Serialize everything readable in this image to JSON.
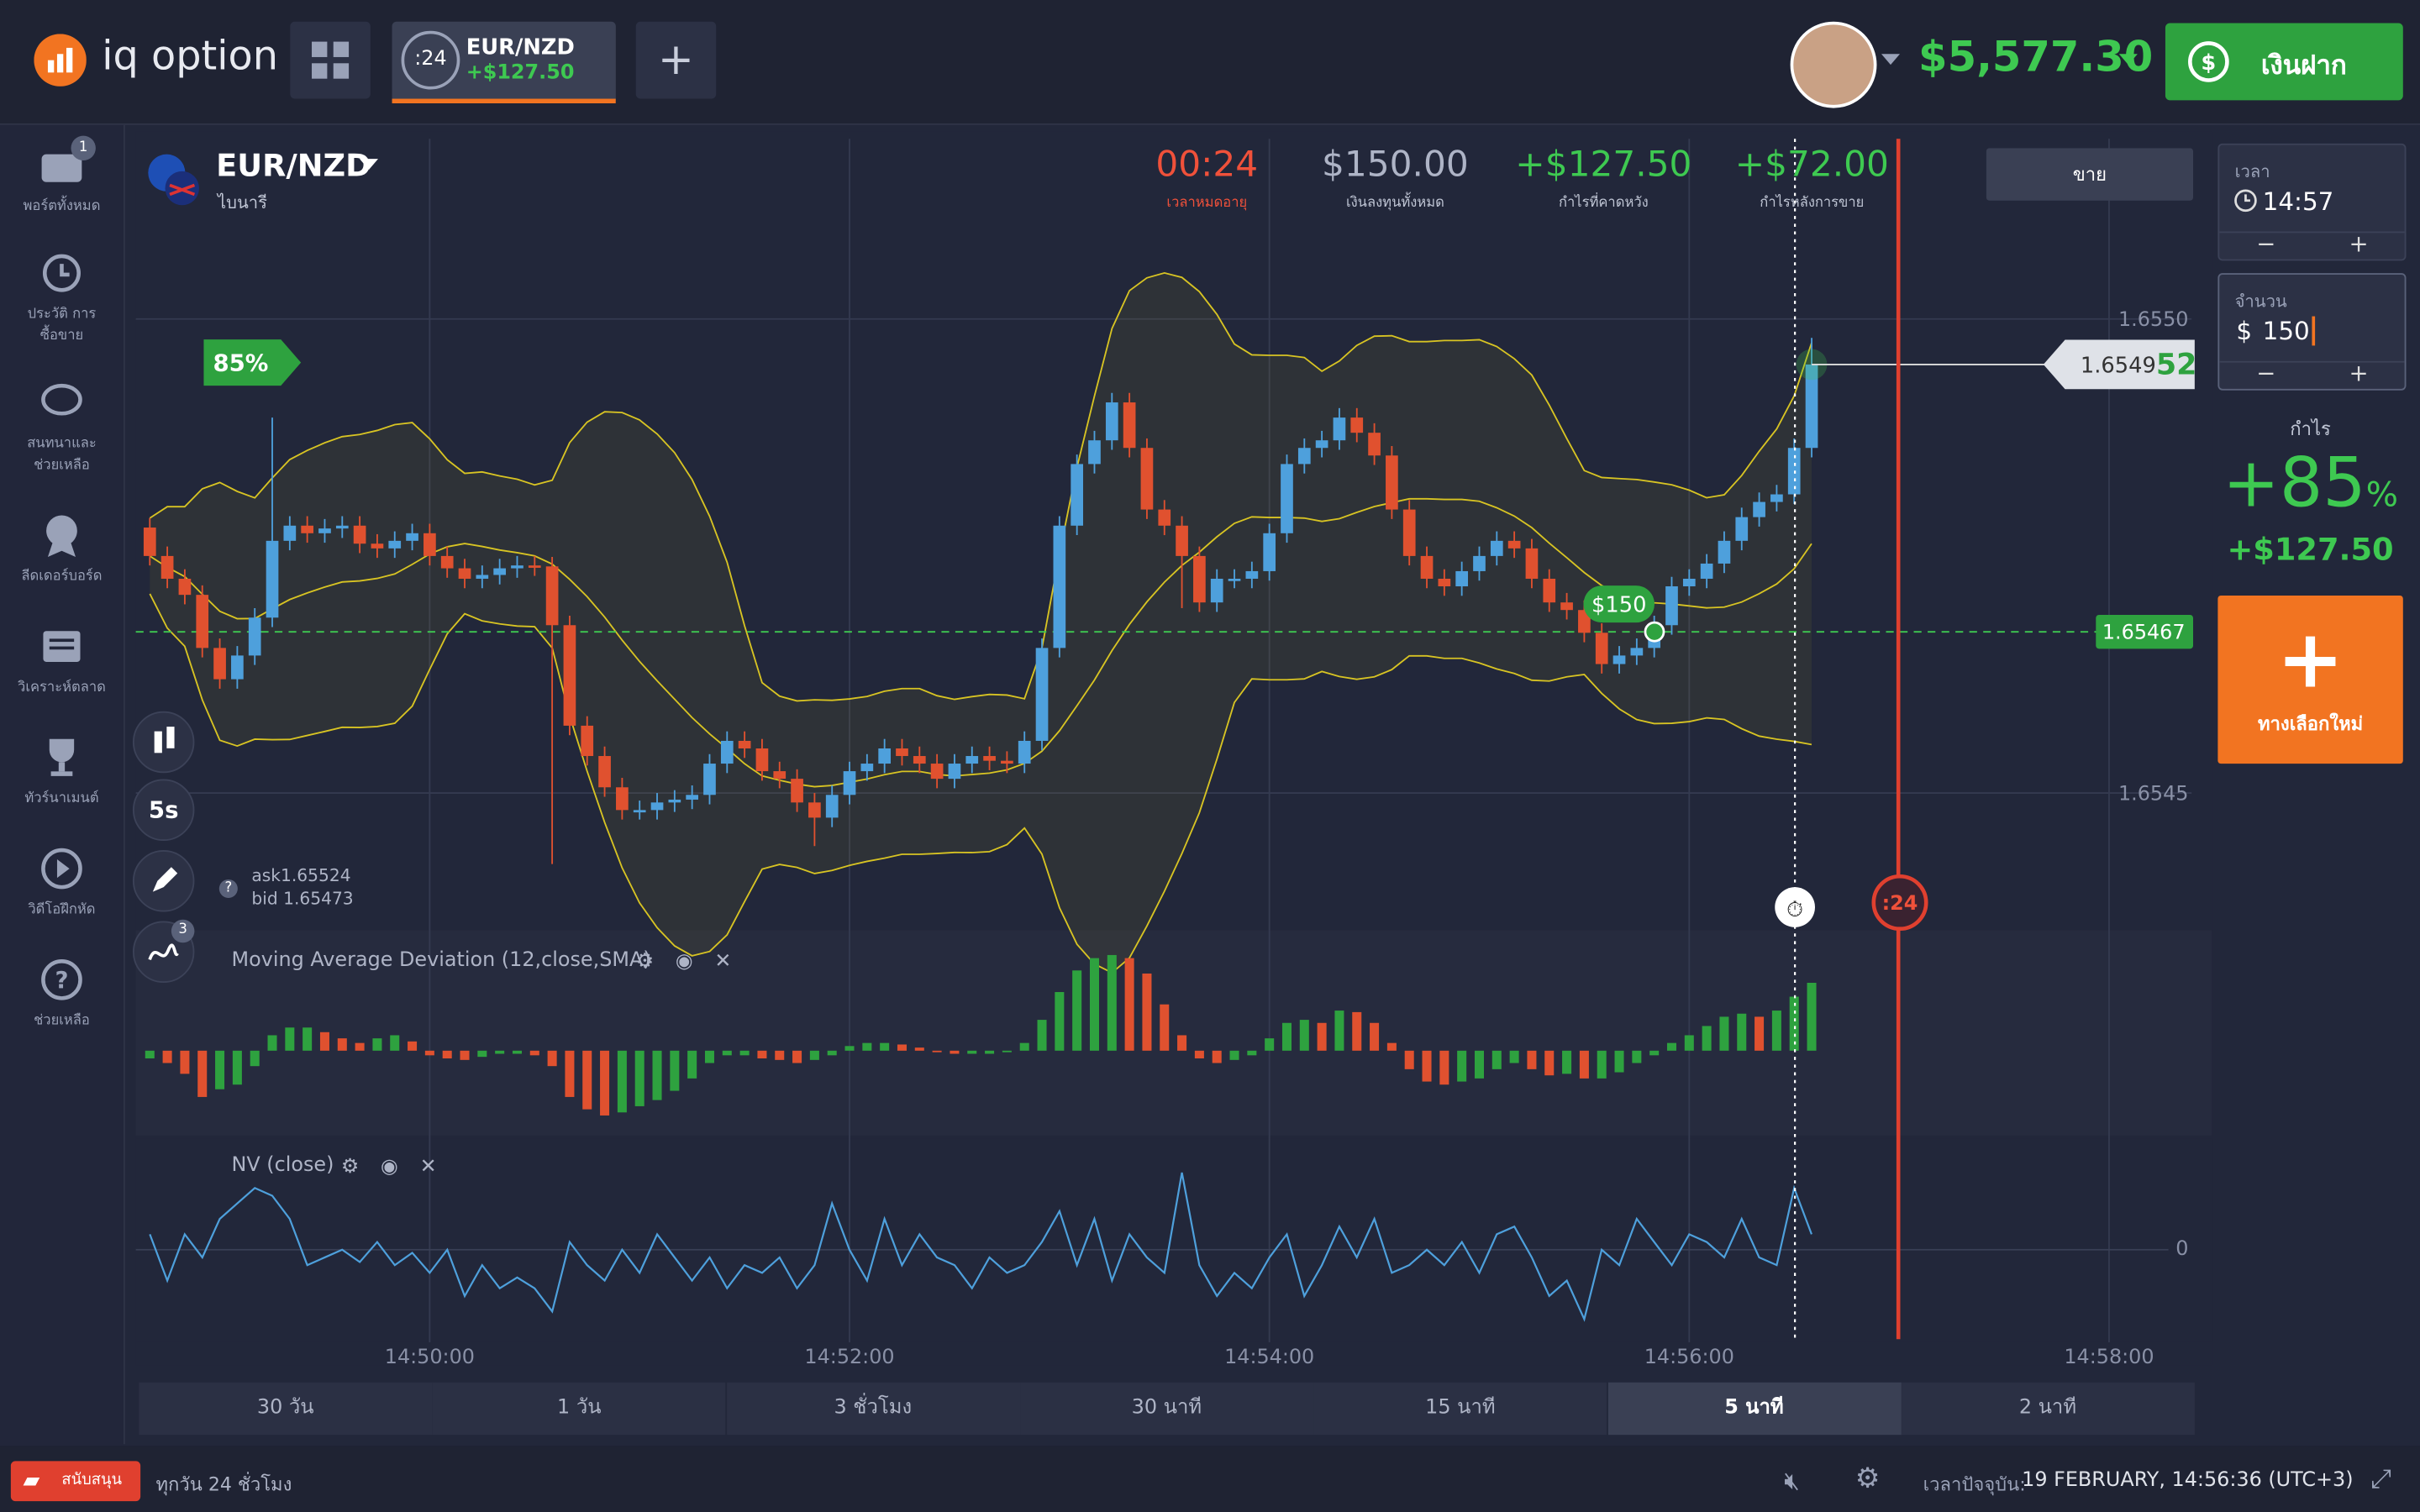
{
  "header": {
    "logo": "iq option",
    "tab": {
      "timer": ":24",
      "pair": "EUR/NZD",
      "profit": "+$127.50"
    },
    "balance": "$5,577.30",
    "deposit": "เงินฝาก"
  },
  "sidebar": {
    "items": [
      {
        "label": "พอร์ตทั้งหมด",
        "badge": "1"
      },
      {
        "label": "ประวัติ การซื้อขาย"
      },
      {
        "label": "สนทนาและ ช่วยเหลือ"
      },
      {
        "label": "ลีดเดอร์บอร์ด"
      },
      {
        "label": "วิเคราะห์ตลาด"
      },
      {
        "label": "ทัวร์นาเมนต์"
      },
      {
        "label": "วิดีโอฝึกหัด"
      },
      {
        "label": "ช่วยเหลือ"
      }
    ]
  },
  "asset": {
    "name": "EUR/NZD",
    "kind": "ไบนารี"
  },
  "stats": [
    {
      "value": "00:24",
      "label": "เวลาหมดอายุ"
    },
    {
      "value": "$150.00",
      "label": "เงินลงทุนทั้งหมด"
    },
    {
      "value": "+$127.50",
      "label": "กำไรที่คาดหวัง"
    },
    {
      "value": "+$72.00",
      "label": "กำไรหลังการขาย"
    }
  ],
  "sell": "ขาย",
  "trade_panel": {
    "time_label": "เวลา",
    "time": "14:57",
    "amount_label": "จำนวน",
    "currency": "$",
    "amount": "150",
    "profit_label": "กำไร",
    "payout_value": "+85",
    "payout_unit": "%",
    "profit": "+$127.50",
    "new_option": "ทางเลือกใหม่"
  },
  "tools": {
    "interval": "5s",
    "indicators_badge": "3",
    "ask_label": "ask",
    "ask": 1.65524,
    "bid_label": "bid",
    "bid": 1.65473
  },
  "periods": [
    "30 วัน",
    "1 วัน",
    "3 ชั่วโมง",
    "30 นาที",
    "15 นาที",
    "5 นาที",
    "2 นาที"
  ],
  "footer": {
    "support": "สนับสนุน",
    "hours": "ทุกวัน 24 ชั่วโมง",
    "now_label": "เวลาปัจจุบัน:",
    "now": "19 FEBRUARY, 14:56:36 (UTC+3)"
  },
  "chart_data": [
    {
      "type": "candlestick",
      "up_color": "#4ea0dc",
      "down_color": "#e0512f",
      "band_color": "#d8c423",
      "grid": true,
      "xlim": [
        53316,
        53908
      ],
      "xticks": [
        {
          "value": 53400,
          "label": "14:50:00"
        },
        {
          "value": 53520,
          "label": "14:52:00"
        },
        {
          "value": 53640,
          "label": "14:54:00"
        },
        {
          "value": 53760,
          "label": "14:56:00"
        },
        {
          "value": 53880,
          "label": "14:58:00"
        }
      ],
      "ylim": [
        1.65436,
        1.65519
      ],
      "yticks": [
        {
          "value": 1.655,
          "label": "1.6550"
        },
        1.6545
      ],
      "payout": "85%",
      "price_label": {
        "main": "1.6549",
        "tail": "52"
      },
      "entry": {
        "price": 1.65467,
        "amount": "$150"
      },
      "timer": ":24",
      "x": [
        53320,
        53325,
        53330,
        53335,
        53340,
        53345,
        53350,
        53355,
        53360,
        53365,
        53370,
        53375,
        53380,
        53385,
        53390,
        53395,
        53400,
        53405,
        53410,
        53415,
        53420,
        53425,
        53430,
        53435,
        53440,
        53445,
        53450,
        53455,
        53460,
        53465,
        53470,
        53475,
        53480,
        53485,
        53490,
        53495,
        53500,
        53505,
        53510,
        53515,
        53520,
        53525,
        53530,
        53535,
        53540,
        53545,
        53550,
        53555,
        53560,
        53565,
        53570,
        53575,
        53580,
        53585,
        53590,
        53595,
        53600,
        53605,
        53610,
        53615,
        53620,
        53625,
        53630,
        53635,
        53640,
        53645,
        53650,
        53655,
        53660,
        53665,
        53670,
        53675,
        53680,
        53685,
        53690,
        53695,
        53700,
        53705,
        53710,
        53715,
        53720,
        53725,
        53730,
        53735,
        53740,
        53745,
        53750,
        53755,
        53760,
        53765,
        53770,
        53775,
        53780,
        53785,
        53790,
        53795
      ],
      "candles": [
        [
          1.65478,
          1.65479,
          1.65474,
          1.65475
        ],
        [
          1.65475,
          1.65476,
          1.654716,
          1.654726
        ],
        [
          1.654726,
          1.654736,
          1.654699,
          1.654709
        ],
        [
          1.654709,
          1.654719,
          1.654643,
          1.654653
        ],
        [
          1.654653,
          1.654663,
          1.65461,
          1.65462
        ],
        [
          1.65462,
          1.654655,
          1.65461,
          1.654645
        ],
        [
          1.654645,
          1.654695,
          1.654635,
          1.654685
        ],
        [
          1.654685,
          1.654896,
          1.654675,
          1.654766
        ],
        [
          1.654766,
          1.654792,
          1.654756,
          1.654782
        ],
        [
          1.654782,
          1.654792,
          1.654764,
          1.654774
        ],
        [
          1.654774,
          1.654789,
          1.654764,
          1.654779
        ],
        [
          1.654779,
          1.654792,
          1.654769,
          1.654782
        ],
        [
          1.654782,
          1.654792,
          1.654753,
          1.654763
        ],
        [
          1.654763,
          1.654773,
          1.654748,
          1.654758
        ],
        [
          1.654758,
          1.654776,
          1.654748,
          1.654766
        ],
        [
          1.654766,
          1.654784,
          1.654756,
          1.654774
        ],
        [
          1.654774,
          1.654784,
          1.65474,
          1.65475
        ],
        [
          1.65475,
          1.65476,
          1.654727,
          1.654737
        ],
        [
          1.654737,
          1.654747,
          1.654716,
          1.654726
        ],
        [
          1.654726,
          1.65474,
          1.654716,
          1.65473
        ],
        [
          1.65473,
          1.654747,
          1.65472,
          1.654737
        ],
        [
          1.654737,
          1.65475,
          1.654727,
          1.65474
        ],
        [
          1.65474,
          1.65475,
          1.654729,
          1.654739
        ],
        [
          1.654739,
          1.654749,
          1.654425,
          1.654677
        ],
        [
          1.654677,
          1.654687,
          1.654561,
          1.654571
        ],
        [
          1.654571,
          1.654581,
          1.654529,
          1.654539
        ],
        [
          1.654539,
          1.654549,
          1.654496,
          1.654506
        ],
        [
          1.654506,
          1.654516,
          1.654472,
          1.654482
        ],
        [
          1.654482,
          1.654492,
          1.654472,
          1.654482
        ],
        [
          1.654482,
          1.6545,
          1.654472,
          1.65449
        ],
        [
          1.65449,
          1.654503,
          1.65448,
          1.654493
        ],
        [
          1.654493,
          1.654508,
          1.654483,
          1.654498
        ],
        [
          1.654498,
          1.654541,
          1.654488,
          1.654531
        ],
        [
          1.654531,
          1.654565,
          1.654521,
          1.654555
        ],
        [
          1.654555,
          1.654565,
          1.654537,
          1.654547
        ],
        [
          1.654547,
          1.654557,
          1.654513,
          1.654523
        ],
        [
          1.654523,
          1.654533,
          1.654505,
          1.654515
        ],
        [
          1.654515,
          1.654525,
          1.65448,
          1.65449
        ],
        [
          1.65449,
          1.6545,
          1.654444,
          1.654474
        ],
        [
          1.654474,
          1.654508,
          1.654464,
          1.654498
        ],
        [
          1.654498,
          1.654533,
          1.654488,
          1.654523
        ],
        [
          1.654523,
          1.654541,
          1.654513,
          1.654531
        ],
        [
          1.654531,
          1.654557,
          1.654521,
          1.654547
        ],
        [
          1.654547,
          1.654557,
          1.654529,
          1.654539
        ],
        [
          1.654539,
          1.654549,
          1.654521,
          1.654531
        ],
        [
          1.654531,
          1.654541,
          1.654505,
          1.654515
        ],
        [
          1.654515,
          1.654541,
          1.654505,
          1.654531
        ],
        [
          1.654531,
          1.654549,
          1.654521,
          1.654539
        ],
        [
          1.654539,
          1.654549,
          1.654524,
          1.654534
        ],
        [
          1.654534,
          1.654544,
          1.654521,
          1.654531
        ],
        [
          1.654531,
          1.654565,
          1.654521,
          1.654555
        ],
        [
          1.654555,
          1.654663,
          1.654545,
          1.654653
        ],
        [
          1.654653,
          1.654792,
          1.654643,
          1.654782
        ],
        [
          1.654782,
          1.654857,
          1.654772,
          1.654847
        ],
        [
          1.654847,
          1.654882,
          1.654837,
          1.654872
        ],
        [
          1.654872,
          1.654922,
          1.654862,
          1.654912
        ],
        [
          1.654912,
          1.654922,
          1.654854,
          1.654864
        ],
        [
          1.654864,
          1.654874,
          1.654789,
          1.654799
        ],
        [
          1.654799,
          1.654809,
          1.654772,
          1.654782
        ],
        [
          1.654782,
          1.654792,
          1.654695,
          1.65475
        ],
        [
          1.65475,
          1.65476,
          1.654691,
          1.654701
        ],
        [
          1.654701,
          1.654736,
          1.654691,
          1.654726
        ],
        [
          1.654726,
          1.654736,
          1.654716,
          1.654726
        ],
        [
          1.654726,
          1.654744,
          1.654716,
          1.654734
        ],
        [
          1.654734,
          1.654784,
          1.654724,
          1.654774
        ],
        [
          1.654774,
          1.654857,
          1.654764,
          1.654847
        ],
        [
          1.654847,
          1.654874,
          1.654837,
          1.654864
        ],
        [
          1.654864,
          1.654882,
          1.654854,
          1.654872
        ],
        [
          1.654872,
          1.654906,
          1.654862,
          1.654896
        ],
        [
          1.654896,
          1.654906,
          1.65487,
          1.65488
        ],
        [
          1.65488,
          1.65489,
          1.654846,
          1.654856
        ],
        [
          1.654856,
          1.654866,
          1.654789,
          1.654799
        ],
        [
          1.654799,
          1.654809,
          1.65474,
          1.65475
        ],
        [
          1.65475,
          1.65476,
          1.654716,
          1.654726
        ],
        [
          1.654726,
          1.654736,
          1.654708,
          1.654718
        ],
        [
          1.654718,
          1.654744,
          1.654708,
          1.654734
        ],
        [
          1.654734,
          1.65476,
          1.654724,
          1.65475
        ],
        [
          1.65475,
          1.654776,
          1.65474,
          1.654766
        ],
        [
          1.654766,
          1.654776,
          1.654748,
          1.654758
        ],
        [
          1.654758,
          1.654768,
          1.654716,
          1.654726
        ],
        [
          1.654726,
          1.654736,
          1.654691,
          1.654701
        ],
        [
          1.654701,
          1.654711,
          1.654683,
          1.654693
        ],
        [
          1.654693,
          1.654703,
          1.654659,
          1.654669
        ],
        [
          1.654669,
          1.654679,
          1.654626,
          1.654636
        ],
        [
          1.654636,
          1.654655,
          1.654626,
          1.654645
        ],
        [
          1.654645,
          1.654663,
          1.654635,
          1.654653
        ],
        [
          1.654653,
          1.654687,
          1.654643,
          1.654677
        ],
        [
          1.654677,
          1.654728,
          1.654667,
          1.654718
        ],
        [
          1.654718,
          1.654736,
          1.654708,
          1.654726
        ],
        [
          1.654726,
          1.654752,
          1.654716,
          1.654742
        ],
        [
          1.654742,
          1.654776,
          1.654732,
          1.654766
        ],
        [
          1.654766,
          1.654801,
          1.654756,
          1.654791
        ],
        [
          1.654791,
          1.654817,
          1.654781,
          1.654807
        ],
        [
          1.654807,
          1.654825,
          1.654797,
          1.654815
        ],
        [
          1.654815,
          1.654874,
          1.654805,
          1.654864
        ],
        [
          1.654864,
          1.65498,
          1.654854,
          1.654952
        ]
      ]
    },
    {
      "type": "histogram",
      "title": "Moving Average Deviation (12,close,SMA)",
      "up_color": "#2ea23f",
      "down_color": "#e0512f",
      "ylim": [
        -54,
        76
      ],
      "values": [
        -5,
        -8,
        -15,
        -30,
        -25,
        -22,
        -10,
        10,
        15,
        15,
        12,
        8,
        5,
        8,
        10,
        6,
        -3,
        -5,
        -6,
        -4,
        -2,
        -2,
        -3,
        -10,
        -30,
        -38,
        -42,
        -40,
        -36,
        -32,
        -26,
        -18,
        -8,
        -3,
        -3,
        -5,
        -6,
        -8,
        -6,
        -3,
        3,
        5,
        5,
        4,
        2,
        -1,
        -2,
        -2,
        -2,
        -1,
        5,
        20,
        38,
        52,
        60,
        62,
        60,
        50,
        30,
        10,
        -5,
        -8,
        -6,
        -3,
        8,
        18,
        20,
        18,
        26,
        25,
        18,
        5,
        -12,
        -20,
        -22,
        -20,
        -18,
        -12,
        -8,
        -12,
        -16,
        -15,
        -18,
        -18,
        -14,
        -8,
        -3,
        5,
        10,
        16,
        22,
        24,
        22,
        26,
        35,
        44
      ]
    },
    {
      "type": "line",
      "title": "NV (close)",
      "color": "#4ea0dc",
      "ylim": [
        -60,
        70
      ],
      "yticks": [
        0
      ],
      "values": [
        10,
        -20,
        10,
        -5,
        20,
        30,
        40,
        35,
        20,
        -10,
        -5,
        0,
        -8,
        5,
        -10,
        -2,
        -15,
        0,
        -30,
        -10,
        -25,
        -18,
        -25,
        -40,
        5,
        -10,
        -20,
        0,
        -15,
        10,
        -5,
        -20,
        -5,
        -25,
        -10,
        -15,
        -5,
        -25,
        -10,
        30,
        0,
        -20,
        20,
        -10,
        10,
        -5,
        -10,
        -25,
        -5,
        -15,
        -10,
        5,
        25,
        -10,
        20,
        -20,
        10,
        -5,
        -15,
        50,
        -10,
        -30,
        -15,
        -25,
        -5,
        10,
        -30,
        -10,
        15,
        -5,
        20,
        -15,
        -10,
        0,
        -10,
        5,
        -15,
        10,
        15,
        -5,
        -30,
        -20,
        -45,
        0,
        -10,
        20,
        5,
        -10,
        10,
        5,
        -5,
        20,
        -5,
        -10,
        40,
        10
      ]
    }
  ]
}
